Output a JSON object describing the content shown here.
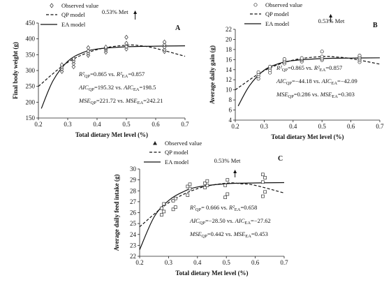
{
  "chart_data": [
    {
      "id": "A",
      "type": "scatter",
      "panel_label": "A",
      "xlabel": "Total dietary Met level (%)",
      "ylabel": "Final body weight (g)",
      "xlim": [
        0.2,
        0.7
      ],
      "ylim": [
        150,
        450
      ],
      "xticks": [
        "0.2",
        "0.3",
        "0.4",
        "0.5",
        "0.6",
        "0.7"
      ],
      "yticks": [
        "150",
        "200",
        "250",
        "300",
        "350",
        "400",
        "450"
      ],
      "marker": "diamond",
      "legend": {
        "observed": "Observed value",
        "qp": "QP model",
        "ea": "EA model"
      },
      "annotation_met": "0.53% Met",
      "met_level": 0.53,
      "stats": [
        {
          "a": "R²",
          "asub": "QP",
          "mid": "=0.865 vs. ",
          "b": "R²",
          "bsub": "EA",
          "end": "=0.857"
        },
        {
          "a": "AIC",
          "asub": "QP",
          "mid": "=195.32 vs. ",
          "b": "AIC",
          "bsub": "EA",
          "end": "=198.5"
        },
        {
          "a": "MSE",
          "asub": "QP",
          "mid": "=221.72 vs. ",
          "b": "MSE",
          "bsub": "EA",
          "end": "=242.21"
        }
      ],
      "observed": [
        [
          0.28,
          297
        ],
        [
          0.28,
          305
        ],
        [
          0.28,
          312
        ],
        [
          0.28,
          318
        ],
        [
          0.32,
          312
        ],
        [
          0.32,
          322
        ],
        [
          0.32,
          330
        ],
        [
          0.32,
          337
        ],
        [
          0.37,
          348
        ],
        [
          0.37,
          355
        ],
        [
          0.37,
          362
        ],
        [
          0.37,
          372
        ],
        [
          0.43,
          358
        ],
        [
          0.43,
          365
        ],
        [
          0.43,
          370
        ],
        [
          0.43,
          374
        ],
        [
          0.5,
          368
        ],
        [
          0.5,
          376
        ],
        [
          0.5,
          386
        ],
        [
          0.5,
          405
        ],
        [
          0.63,
          360
        ],
        [
          0.63,
          366
        ],
        [
          0.63,
          374
        ],
        [
          0.63,
          382
        ],
        [
          0.63,
          390
        ]
      ],
      "qp_model": [
        [
          0.2,
          250
        ],
        [
          0.3,
          326
        ],
        [
          0.4,
          366
        ],
        [
          0.5,
          380
        ],
        [
          0.55,
          378
        ],
        [
          0.6,
          370
        ],
        [
          0.7,
          345
        ]
      ],
      "ea_model": [
        [
          0.21,
          180
        ],
        [
          0.25,
          268
        ],
        [
          0.3,
          329
        ],
        [
          0.35,
          356
        ],
        [
          0.4,
          368
        ],
        [
          0.5,
          375
        ],
        [
          0.6,
          377
        ],
        [
          0.7,
          378
        ]
      ]
    },
    {
      "id": "B",
      "type": "scatter",
      "panel_label": "B",
      "xlabel": "Total dietary Met level (%)",
      "ylabel": "Average daily gain (g)",
      "xlim": [
        0.2,
        0.7
      ],
      "ylim": [
        4,
        22
      ],
      "xticks": [
        "0.2",
        "0.3",
        "0.4",
        "0.5",
        "0.6",
        "0.7"
      ],
      "yticks": [
        "4",
        "6",
        "8",
        "10",
        "12",
        "14",
        "16",
        "18",
        "20",
        "22"
      ],
      "marker": "circle",
      "legend": {
        "observed": "Observed value",
        "qp": "QP model",
        "ea": "EA model"
      },
      "annotation_met": "0.53% Met",
      "met_level": 0.53,
      "stats": [
        {
          "a": "R²",
          "asub": "QP",
          "mid": "=0.865 vs. ",
          "b": "R²",
          "bsub": "EA",
          "end": "=0.857"
        },
        {
          "a": "AIC",
          "asub": "QP",
          "mid": "=−44.18 vs. ",
          "b": "AIC",
          "bsub": "EA",
          "end": "=−42.09"
        },
        {
          "a": "MSE",
          "asub": "QP",
          "mid": "=0.286 vs. ",
          "b": "MSE",
          "bsub": "EA",
          "end": "=0.303"
        }
      ],
      "observed": [
        [
          0.28,
          12.2
        ],
        [
          0.28,
          12.7
        ],
        [
          0.28,
          13.1
        ],
        [
          0.28,
          13.5
        ],
        [
          0.32,
          13.4
        ],
        [
          0.32,
          13.9
        ],
        [
          0.32,
          14.3
        ],
        [
          0.32,
          14.6
        ],
        [
          0.37,
          15.2
        ],
        [
          0.37,
          15.5
        ],
        [
          0.37,
          15.8
        ],
        [
          0.37,
          16.1
        ],
        [
          0.43,
          15.6
        ],
        [
          0.43,
          15.9
        ],
        [
          0.43,
          16.1
        ],
        [
          0.43,
          16.3
        ],
        [
          0.5,
          15.9
        ],
        [
          0.5,
          16.2
        ],
        [
          0.5,
          16.6
        ],
        [
          0.5,
          17.6
        ],
        [
          0.63,
          15.5
        ],
        [
          0.63,
          15.9
        ],
        [
          0.63,
          16.2
        ],
        [
          0.63,
          16.5
        ],
        [
          0.63,
          16.8
        ]
      ],
      "qp_model": [
        [
          0.2,
          10.0
        ],
        [
          0.3,
          13.8
        ],
        [
          0.4,
          15.9
        ],
        [
          0.5,
          16.6
        ],
        [
          0.55,
          16.5
        ],
        [
          0.6,
          16.2
        ],
        [
          0.7,
          15.1
        ]
      ],
      "ea_model": [
        [
          0.21,
          6.8
        ],
        [
          0.25,
          10.9
        ],
        [
          0.3,
          13.9
        ],
        [
          0.35,
          15.2
        ],
        [
          0.4,
          15.8
        ],
        [
          0.5,
          16.2
        ],
        [
          0.6,
          16.3
        ],
        [
          0.7,
          16.35
        ]
      ]
    },
    {
      "id": "C",
      "type": "scatter",
      "panel_label": "C",
      "xlabel": "Total dietary Met level (%)",
      "ylabel": "Average daily feed intake (g)",
      "xlim": [
        0.2,
        0.7
      ],
      "ylim": [
        22,
        30
      ],
      "xticks": [
        "0.2",
        "0.3",
        "0.4",
        "0.5",
        "0.6",
        "0.7"
      ],
      "yticks": [
        "22",
        "23",
        "24",
        "25",
        "26",
        "27",
        "28",
        "29",
        "30"
      ],
      "marker": "square",
      "legend_marker": "triangle",
      "legend": {
        "observed": "Observed value",
        "qp": "QP model",
        "ea": "EA model"
      },
      "annotation_met": "0.53% Met",
      "met_level": 0.53,
      "stats": [
        {
          "a": "R²",
          "asub": "QP",
          "mid": "= 0.666 vs. ",
          "b": "R²",
          "bsub": "EA",
          "end": "=0.658"
        },
        {
          "a": "AIC",
          "asub": "QP",
          "mid": "=−28.50 vs. ",
          "b": "AIC",
          "bsub": "EA",
          "end": "=−27.62"
        },
        {
          "a": "MSE",
          "asub": "QP",
          "mid": "=0.442 vs. ",
          "b": "MSE",
          "bsub": "EA",
          "end": "=0.453"
        }
      ],
      "observed": [
        [
          0.28,
          25.8
        ],
        [
          0.28,
          26.1
        ],
        [
          0.28,
          26.4
        ],
        [
          0.28,
          26.8
        ],
        [
          0.32,
          26.3
        ],
        [
          0.32,
          26.5
        ],
        [
          0.32,
          27.1
        ],
        [
          0.32,
          27.3
        ],
        [
          0.37,
          27.6
        ],
        [
          0.37,
          28.2
        ],
        [
          0.37,
          28.4
        ],
        [
          0.37,
          28.6
        ],
        [
          0.43,
          28.3
        ],
        [
          0.43,
          28.5
        ],
        [
          0.43,
          28.7
        ],
        [
          0.43,
          28.9
        ],
        [
          0.5,
          27.4
        ],
        [
          0.5,
          27.7
        ],
        [
          0.5,
          28.5
        ],
        [
          0.5,
          29.0
        ],
        [
          0.63,
          27.5
        ],
        [
          0.63,
          27.9
        ],
        [
          0.63,
          28.8
        ],
        [
          0.63,
          29.2
        ],
        [
          0.63,
          29.5
        ]
      ],
      "qp_model": [
        [
          0.2,
          24.7
        ],
        [
          0.3,
          26.9
        ],
        [
          0.4,
          28.2
        ],
        [
          0.5,
          28.7
        ],
        [
          0.55,
          28.65
        ],
        [
          0.6,
          28.5
        ],
        [
          0.7,
          27.8
        ]
      ],
      "ea_model": [
        [
          0.2,
          22.6
        ],
        [
          0.25,
          25.6
        ],
        [
          0.3,
          27.1
        ],
        [
          0.35,
          27.9
        ],
        [
          0.4,
          28.35
        ],
        [
          0.5,
          28.65
        ],
        [
          0.6,
          28.72
        ],
        [
          0.7,
          28.75
        ]
      ]
    }
  ]
}
